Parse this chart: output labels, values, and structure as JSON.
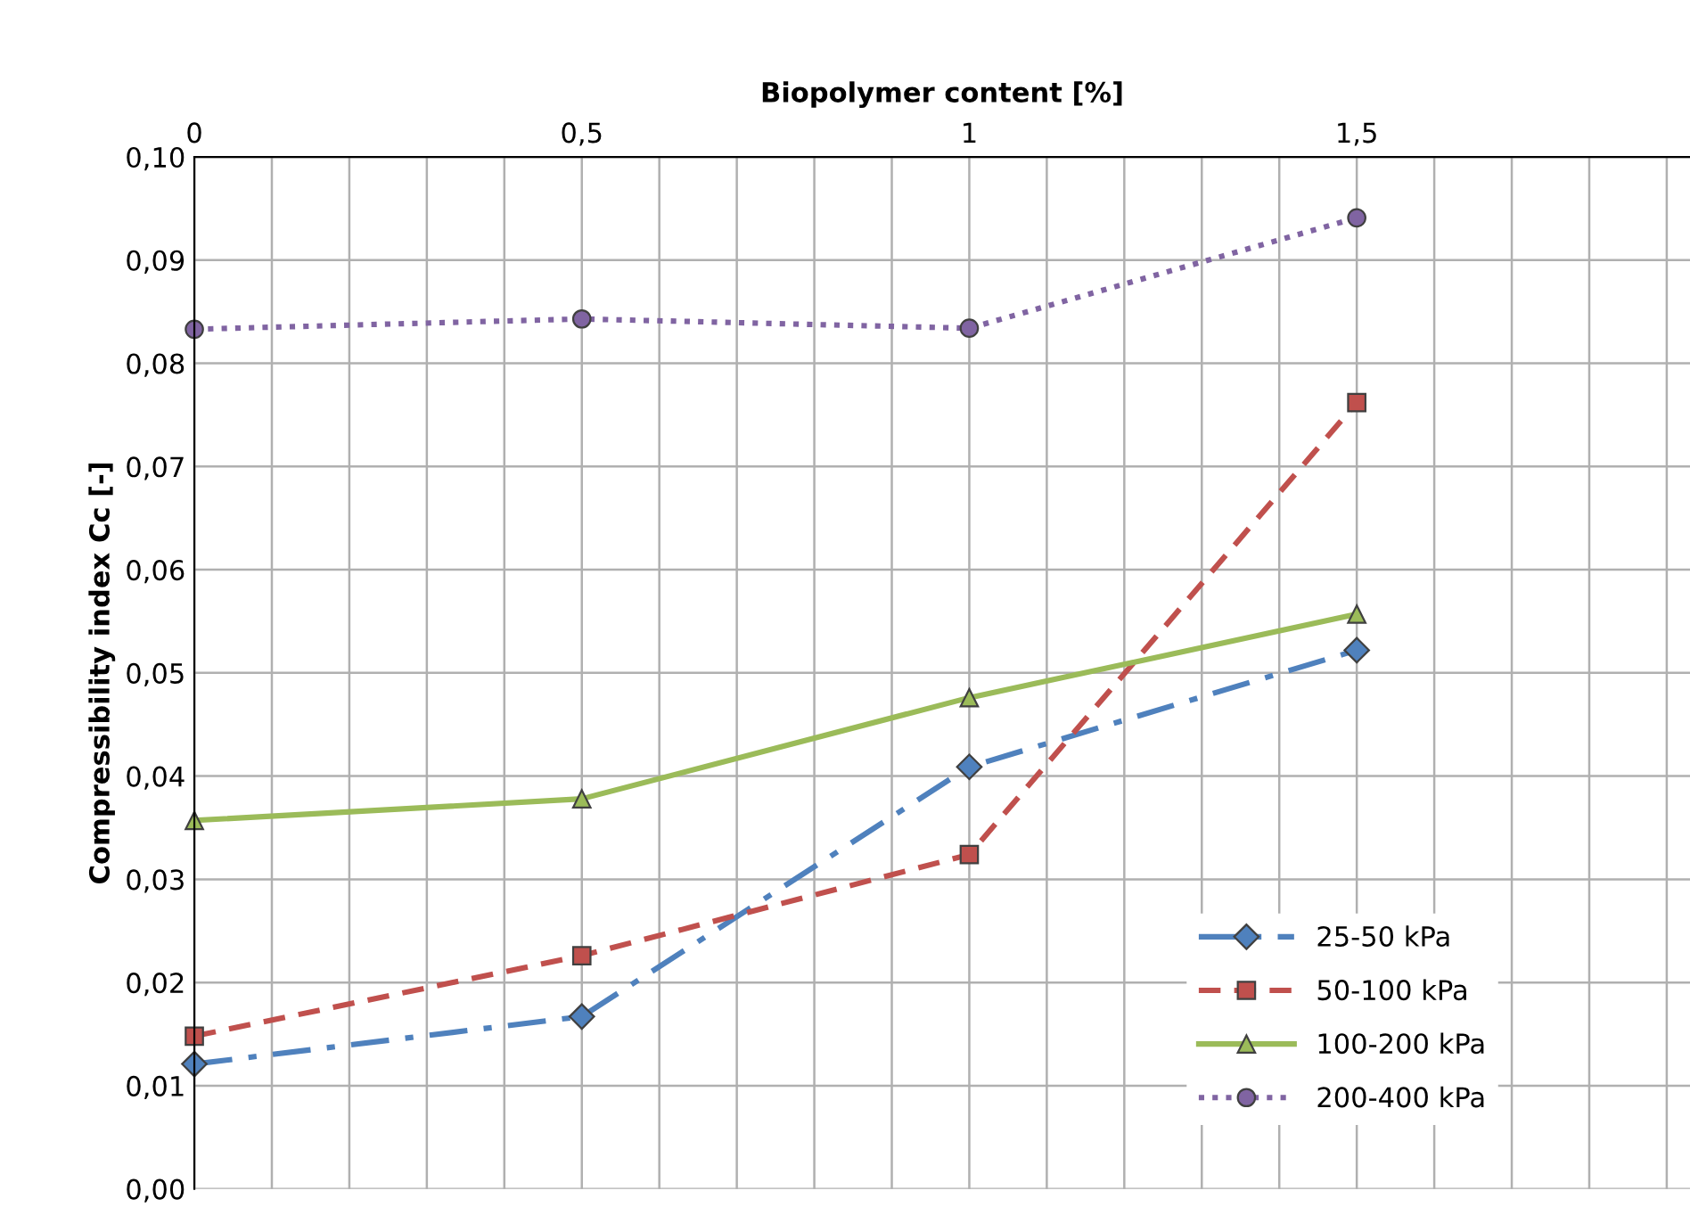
{
  "chart_data": {
    "type": "line",
    "xlabel": "Biopolymer content [%]",
    "ylabel": "Compressibility index Cc [-]",
    "x": [
      0,
      0.5,
      1,
      1.5
    ],
    "series": [
      {
        "name": "25-50 kPa",
        "color": "#4f81bd",
        "values": [
          0.0121,
          0.0167,
          0.0409,
          0.0522
        ],
        "marker": "diamond",
        "line_style": "dashdot"
      },
      {
        "name": "50-100 kPa",
        "color": "#c0504d",
        "values": [
          0.0148,
          0.0226,
          0.0324,
          0.0762
        ],
        "marker": "square",
        "line_style": "dashed"
      },
      {
        "name": "100-200 kPa",
        "color": "#9bbb59",
        "values": [
          0.0357,
          0.0378,
          0.0476,
          0.0557
        ],
        "marker": "triangle",
        "line_style": "solid"
      },
      {
        "name": "200-400 kPa",
        "color": "#8064a2",
        "values": [
          0.0833,
          0.0843,
          0.0834,
          0.0941
        ],
        "marker": "circle",
        "line_style": "dotted"
      }
    ],
    "xlim": [
      0,
      1.93
    ],
    "xticks": [
      0,
      {
        "value": 0.1,
        "label": null
      },
      {
        "value": 0.2,
        "label": null
      },
      {
        "value": 0.3,
        "label": null
      },
      {
        "value": 0.4,
        "label": null
      },
      {
        "value": 0.5,
        "label": "0,5"
      },
      {
        "value": 0.6,
        "label": null
      },
      {
        "value": 0.7,
        "label": null
      },
      {
        "value": 0.8,
        "label": null
      },
      {
        "value": 0.9,
        "label": null
      },
      1,
      {
        "value": 1.1,
        "label": null
      },
      {
        "value": 1.2,
        "label": null
      },
      {
        "value": 1.3,
        "label": null
      },
      {
        "value": 1.4,
        "label": null
      },
      {
        "value": 1.5,
        "label": "1,5"
      },
      {
        "value": 1.6,
        "label": null
      },
      {
        "value": 1.7,
        "label": null
      },
      {
        "value": 1.8,
        "label": null
      },
      {
        "value": 1.9,
        "label": null
      }
    ],
    "ylim": [
      0,
      0.1
    ],
    "yticks": [
      {
        "value": 0,
        "label": "0,00"
      },
      {
        "value": 0.01,
        "label": "0,01"
      },
      {
        "value": 0.02,
        "label": "0,02"
      },
      {
        "value": 0.03,
        "label": "0,03"
      },
      {
        "value": 0.04,
        "label": "0,04"
      },
      {
        "value": 0.05,
        "label": "0,05"
      },
      {
        "value": 0.06,
        "label": "0,06"
      },
      {
        "value": 0.07,
        "label": "0,07"
      },
      {
        "value": 0.08,
        "label": "0,08"
      },
      {
        "value": 0.09,
        "label": "0,09"
      },
      {
        "value": 0.1,
        "label": "0,10"
      }
    ],
    "grid": true,
    "legend": "bottom right"
  }
}
